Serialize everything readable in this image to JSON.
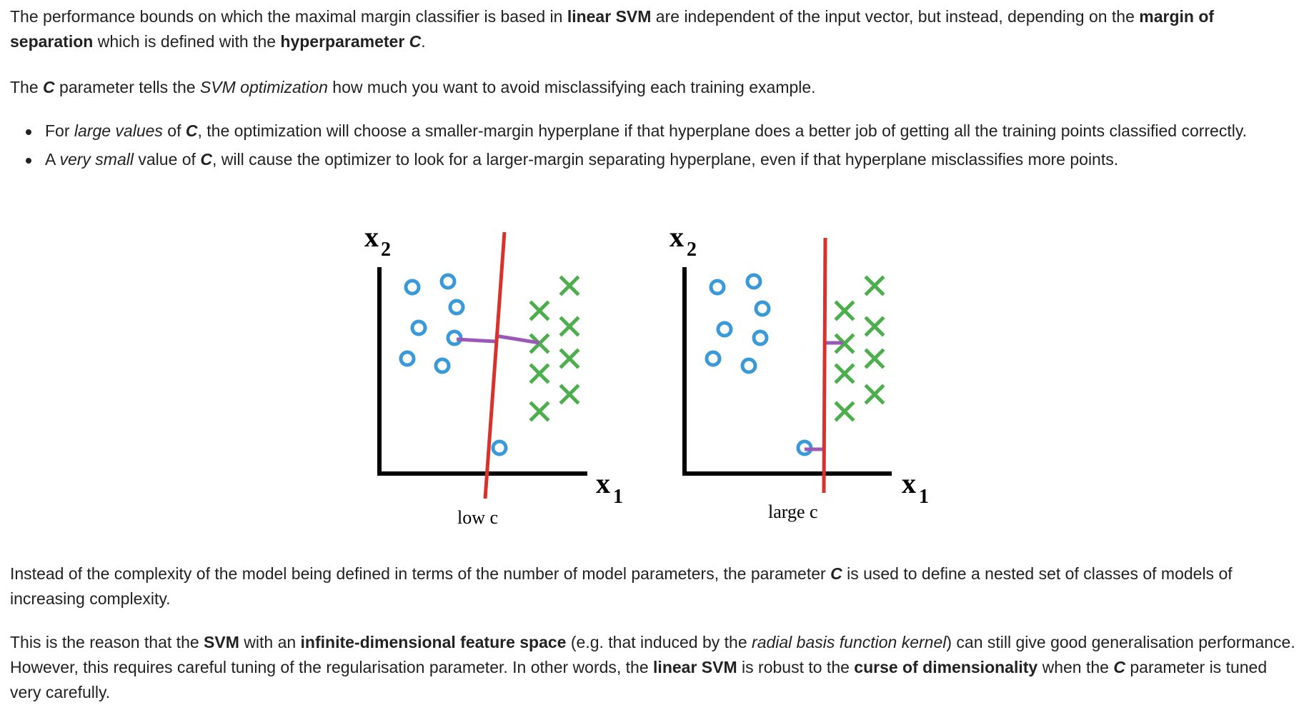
{
  "paragraph1": {
    "t1": "The performance bounds on which the maximal margin classifier is based in ",
    "b1": "linear SVM",
    "t2": " are independent of the input vector, but instead, depending on the ",
    "b2": "margin of separation",
    "t3": " which is defined with the ",
    "b3": "hyperparameter ",
    "bi1": "C",
    "t4": "."
  },
  "paragraph2": {
    "t1": "The ",
    "bi1": "C",
    "t2": " parameter tells the ",
    "i1": "SVM optimization",
    "t3": " how much you want to avoid misclassifying each training example."
  },
  "bullets": [
    {
      "t1": "For ",
      "i1": "large values",
      "t2": " of ",
      "bi1": "C",
      "t3": ", the optimization will choose a smaller-margin hyperplane if that hyperplane does a better job of getting all the training points classified correctly."
    },
    {
      "t1": "A ",
      "i1": "very small",
      "t2": " value of ",
      "bi1": "C",
      "t3": ", will cause the optimizer to look for a larger-margin separating hyperplane, even if that hyperplane misclassifies more points."
    }
  ],
  "figure": {
    "left_panel": {
      "y_axis_label": "x",
      "y_axis_sub": "2",
      "x_axis_label": "x",
      "x_axis_sub": "1",
      "caption": "low c"
    },
    "right_panel": {
      "y_axis_label": "x",
      "y_axis_sub": "2",
      "x_axis_label": "x",
      "x_axis_sub": "1",
      "caption": "large c"
    },
    "colors": {
      "circle": "#3a9ad9",
      "cross": "#4cae4c",
      "hyperplane": "#d9312b",
      "margin": "#9b59b6",
      "axis": "#000000"
    }
  },
  "paragraph3": {
    "t1": "Instead of the complexity of the model being defined in terms of the number of model parameters, the parameter ",
    "bi1": "C",
    "t2": " is used to define a nested set of classes of models of increasing complexity."
  },
  "paragraph4": {
    "t1": "This is the reason that the ",
    "b1": "SVM",
    "t2": " with an ",
    "b2": "infinite-dimensional feature space",
    "t3": " (e.g. that induced by the ",
    "i1": "radial basis function kernel",
    "t4": ") can still give good generalisation performance. However, this requires careful tuning of the regularisation parameter. In other words, the ",
    "b3": "linear SVM",
    "t5": " is robust to the ",
    "b4": "curse of dimensionality",
    "t6": " when the ",
    "bi1": "C",
    "t7": " parameter is tuned very carefully."
  }
}
